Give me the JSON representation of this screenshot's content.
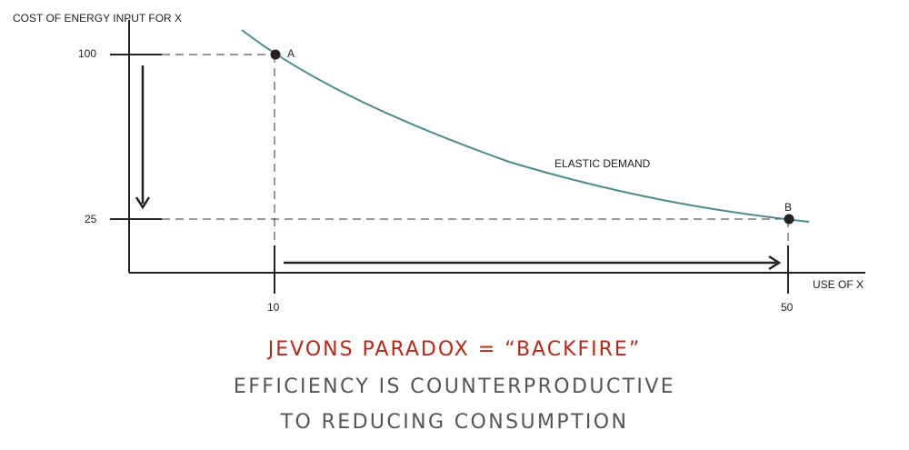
{
  "diagram": {
    "y_axis_title": "COST OF ENERGY INPUT FOR X",
    "x_axis_title": "USE OF X",
    "y_ticks": [
      "100",
      "25"
    ],
    "x_ticks": [
      "10",
      "50"
    ],
    "curve_label": "ELASTIC DEMAND",
    "point_a_label": "A",
    "point_b_label": "B",
    "colors": {
      "curve": "#4f8a8b",
      "axes": "#222222",
      "title_accent": "#b32a1a",
      "subtitle": "#555555"
    }
  },
  "caption": {
    "headline": "JEVONS PARADOX = “BACKFIRE”",
    "line1": "EFFICIENCY IS COUNTERPRODUCTIVE",
    "line2": "TO REDUCING CONSUMPTION"
  }
}
